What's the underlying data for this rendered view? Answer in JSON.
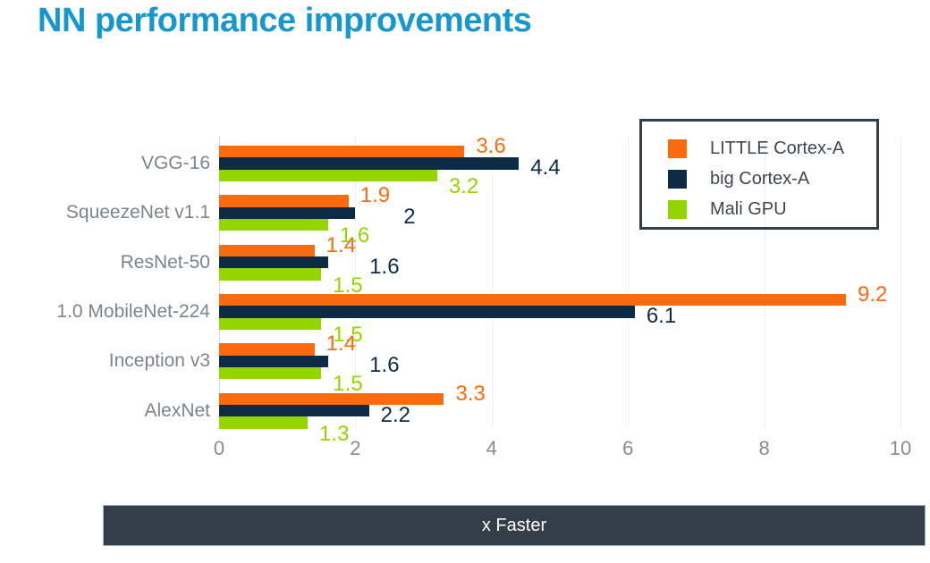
{
  "title": "NN performance improvements",
  "colors": {
    "title": "#1697ce",
    "orange": "#fa6b0d",
    "navy": "#0d2b45",
    "green": "#94d500",
    "axis_text": "#828d96",
    "category_text": "#7b858e",
    "grid": "#dfe3e6",
    "legend_border": "#323e48",
    "footer_bg": "#333e48",
    "footer_text": "#ffffff"
  },
  "legend": {
    "items": [
      {
        "label": "LITTLE Cortex-A",
        "color_key": "orange"
      },
      {
        "label": "big Cortex-A",
        "color_key": "navy"
      },
      {
        "label": "Mali GPU",
        "color_key": "green"
      }
    ]
  },
  "x_axis": {
    "label": "x Faster",
    "ticks": [
      0,
      2,
      4,
      6,
      8,
      10
    ],
    "min": 0,
    "max": 10
  },
  "chart_data": {
    "type": "bar",
    "orientation": "horizontal",
    "title": "NN performance improvements",
    "categories": [
      "VGG-16",
      "SqueezeNet v1.1",
      "ResNet-50",
      "1.0 MobileNet-224",
      "Inception v3",
      "AlexNet"
    ],
    "series": [
      {
        "name": "LITTLE Cortex-A",
        "color_key": "orange",
        "values": [
          3.6,
          1.9,
          1.4,
          9.2,
          1.4,
          3.3
        ]
      },
      {
        "name": "big Cortex-A",
        "color_key": "navy",
        "values": [
          4.4,
          2,
          1.6,
          6.1,
          1.6,
          2.2
        ]
      },
      {
        "name": "Mali GPU",
        "color_key": "green",
        "values": [
          3.2,
          1.6,
          1.5,
          1.5,
          1.5,
          1.3
        ]
      }
    ],
    "xlabel": "x Faster",
    "xlim": [
      0,
      10
    ],
    "grid": "vertical-dotted",
    "legend_position": "top-right",
    "data_labels": "end-of-bar, colored per series"
  }
}
